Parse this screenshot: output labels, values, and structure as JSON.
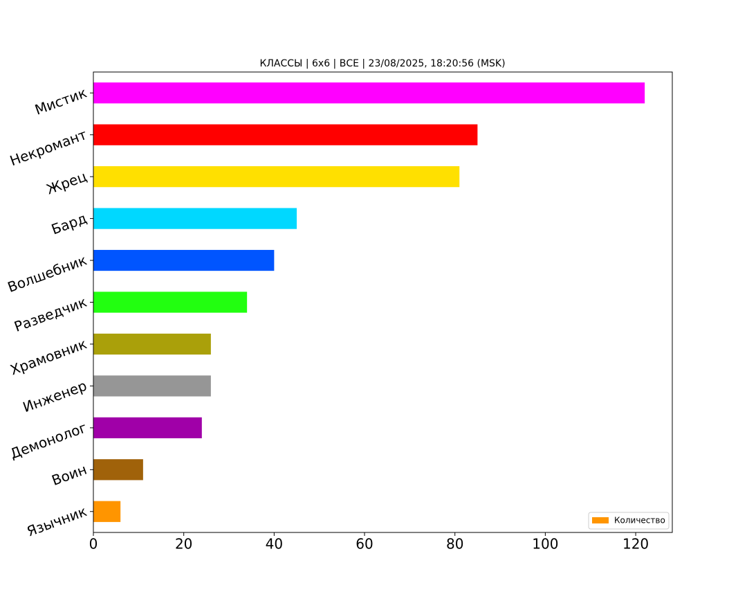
{
  "chart_data": {
    "type": "barh",
    "title": "КЛАССЫ | 6x6 | ВСЕ | 23/08/2025, 18:20:56 (MSK)",
    "categories": [
      "Язычник",
      "Воин",
      "Демонолог",
      "Инженер",
      "Храмовник",
      "Разведчик",
      "Волшебник",
      "Бард",
      "Жрец",
      "Некромант",
      "Мистик"
    ],
    "series": [
      {
        "name": "Количество",
        "colors": [
          "#ff9500",
          "#a0620a",
          "#a000a8",
          "#969696",
          "#aaa00a",
          "#22ff10",
          "#0055ff",
          "#00d8ff",
          "#ffe000",
          "#ff0000",
          "#ff00ff"
        ],
        "values": [
          6,
          11,
          24,
          26,
          26,
          34,
          40,
          45,
          81,
          85,
          122
        ]
      }
    ],
    "xlim": [
      0,
      128.1
    ],
    "xticks": [
      0,
      20,
      40,
      60,
      80,
      100,
      120
    ],
    "legend": "lower right"
  }
}
